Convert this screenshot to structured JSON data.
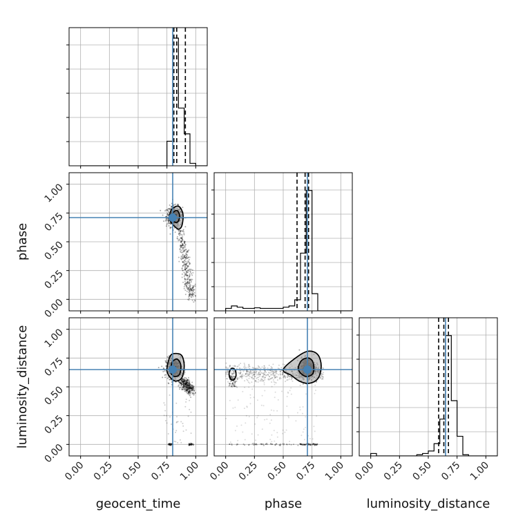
{
  "chart_data": {
    "type": "corner",
    "parameters": [
      "geocent_time",
      "phase",
      "luminosity_distance"
    ],
    "axis_range": [
      -0.1,
      1.1
    ],
    "tick_values": [
      0.0,
      0.25,
      0.5,
      0.75,
      1.0
    ],
    "tick_labels": [
      "0.00",
      "0.25",
      "0.50",
      "0.75",
      "1.00"
    ],
    "grid": true,
    "truth_color": "#4682b4",
    "hist_color": "#000000",
    "truths": {
      "geocent_time": 0.8,
      "phase": 0.71,
      "luminosity_distance": 0.65
    },
    "histograms": [
      {
        "parameter": "geocent_time",
        "bin_edges": [
          0.0,
          0.05,
          0.1,
          0.15,
          0.2,
          0.25,
          0.3,
          0.35,
          0.4,
          0.45,
          0.5,
          0.55,
          0.6,
          0.65,
          0.7,
          0.75,
          0.8,
          0.85,
          0.9,
          0.95,
          1.0,
          1.05
        ],
        "counts": [
          0,
          0,
          0,
          0,
          0,
          0,
          0,
          0,
          0,
          0,
          0,
          0,
          0,
          0,
          0,
          0.2,
          1.04,
          0.47,
          0.26,
          0.02,
          0,
          0
        ],
        "quantiles": [
          0.81,
          0.835,
          0.91
        ]
      },
      {
        "parameter": "phase",
        "bin_edges": [
          0.0,
          0.05,
          0.1,
          0.15,
          0.2,
          0.25,
          0.3,
          0.35,
          0.4,
          0.45,
          0.5,
          0.55,
          0.6,
          0.65,
          0.7,
          0.75,
          0.8,
          0.85,
          0.9,
          0.95,
          1.0,
          1.05
        ],
        "counts": [
          0.02,
          0.04,
          0.03,
          0.02,
          0.02,
          0.025,
          0.02,
          0.02,
          0.02,
          0.02,
          0.03,
          0.04,
          0.09,
          0.47,
          0.98,
          0.14,
          0,
          0,
          0,
          0,
          0,
          0
        ],
        "quantiles": [
          0.62,
          0.69,
          0.72
        ]
      },
      {
        "parameter": "luminosity_distance",
        "bin_edges": [
          0.0,
          0.05,
          0.1,
          0.15,
          0.2,
          0.25,
          0.3,
          0.35,
          0.4,
          0.45,
          0.5,
          0.55,
          0.6,
          0.65,
          0.7,
          0.75,
          0.8,
          0.85,
          0.9,
          0.95,
          1.0,
          1.05
        ],
        "counts": [
          0.02,
          0,
          0,
          0,
          0,
          0,
          0,
          0,
          0.01,
          0.02,
          0.04,
          0.1,
          0.3,
          0.98,
          0.45,
          0.16,
          0.01,
          0,
          0,
          0,
          0,
          0
        ],
        "quantiles": [
          0.59,
          0.635,
          0.675
        ]
      }
    ],
    "contours_2d": [
      {
        "x": "geocent_time",
        "y": "phase",
        "peak": [
          0.815,
          0.72
        ],
        "levels": [
          [
            [
              0.77,
              0.71
            ],
            [
              0.79,
              0.78
            ],
            [
              0.84,
              0.81
            ],
            [
              0.87,
              0.79
            ],
            [
              0.89,
              0.73
            ],
            [
              0.88,
              0.64
            ],
            [
              0.85,
              0.61
            ],
            [
              0.81,
              0.64
            ],
            [
              0.78,
              0.68
            ]
          ],
          [
            [
              0.79,
              0.72
            ],
            [
              0.81,
              0.76
            ],
            [
              0.84,
              0.77
            ],
            [
              0.86,
              0.73
            ],
            [
              0.85,
              0.68
            ],
            [
              0.82,
              0.67
            ]
          ]
        ],
        "tail": [
          [
            0.86,
            0.6
          ],
          [
            0.9,
            0.4
          ],
          [
            0.93,
            0.2
          ],
          [
            0.96,
            0.02
          ]
        ]
      },
      {
        "x": "geocent_time",
        "y": "luminosity_distance",
        "peak": [
          0.81,
          0.66
        ],
        "levels": [
          [
            [
              0.75,
              0.66
            ],
            [
              0.78,
              0.77
            ],
            [
              0.83,
              0.79
            ],
            [
              0.88,
              0.77
            ],
            [
              0.9,
              0.68
            ],
            [
              0.88,
              0.58
            ],
            [
              0.83,
              0.55
            ],
            [
              0.79,
              0.57
            ],
            [
              0.76,
              0.61
            ]
          ],
          [
            [
              0.78,
              0.65
            ],
            [
              0.8,
              0.72
            ],
            [
              0.84,
              0.74
            ],
            [
              0.87,
              0.69
            ],
            [
              0.86,
              0.61
            ],
            [
              0.82,
              0.59
            ],
            [
              0.79,
              0.61
            ]
          ]
        ],
        "tail": [
          [
            0.88,
            0.55
          ],
          [
            0.93,
            0.5
          ],
          [
            0.96,
            0.47
          ]
        ]
      },
      {
        "x": "phase",
        "y": "luminosity_distance",
        "peak": [
          0.71,
          0.66
        ],
        "levels": [
          [
            [
              0.5,
              0.65
            ],
            [
              0.62,
              0.76
            ],
            [
              0.72,
              0.81
            ],
            [
              0.8,
              0.78
            ],
            [
              0.83,
              0.68
            ],
            [
              0.8,
              0.57
            ],
            [
              0.72,
              0.53
            ],
            [
              0.64,
              0.55
            ],
            [
              0.57,
              0.6
            ]
          ],
          [
            [
              0.63,
              0.66
            ],
            [
              0.66,
              0.73
            ],
            [
              0.72,
              0.75
            ],
            [
              0.76,
              0.71
            ],
            [
              0.76,
              0.62
            ],
            [
              0.71,
              0.59
            ],
            [
              0.66,
              0.61
            ]
          ]
        ],
        "island": [
          [
            0.03,
            0.62
          ],
          [
            0.04,
            0.57
          ],
          [
            0.07,
            0.56
          ],
          [
            0.09,
            0.6
          ],
          [
            0.08,
            0.65
          ],
          [
            0.05,
            0.66
          ]
        ]
      }
    ]
  }
}
